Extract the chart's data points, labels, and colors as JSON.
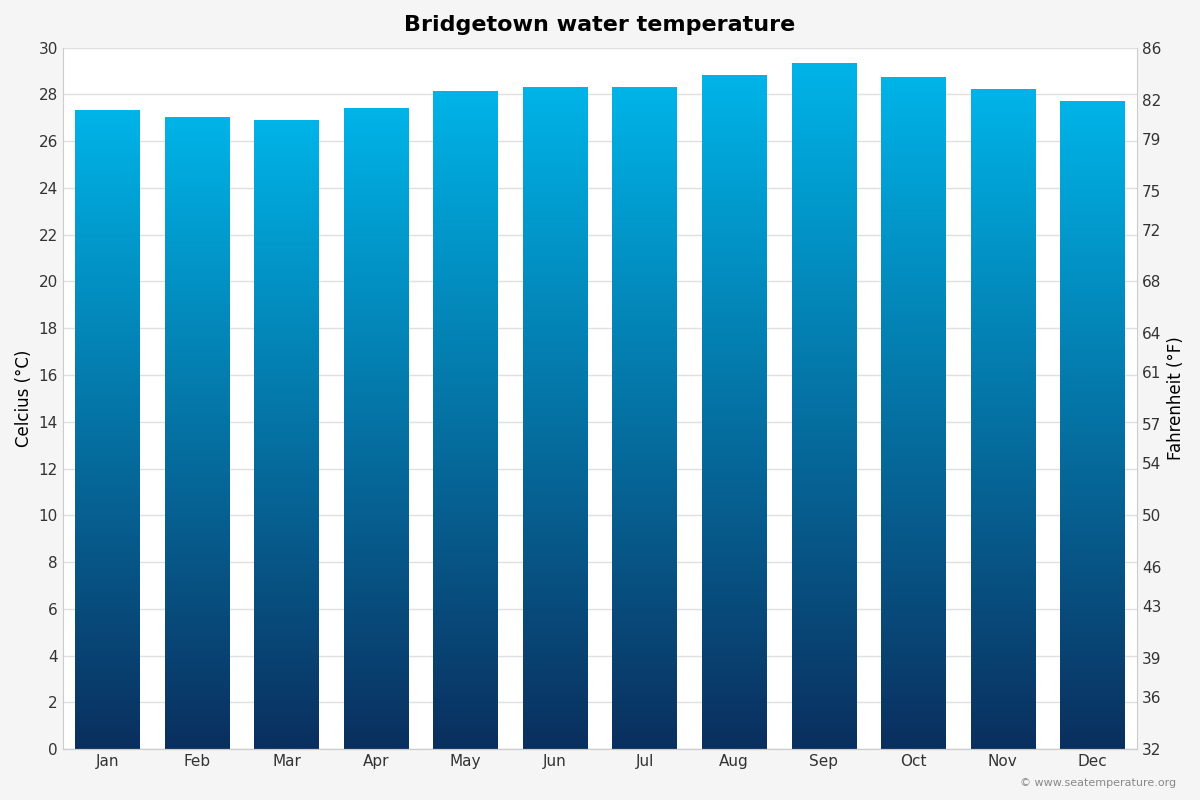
{
  "title": "Bridgetown water temperature",
  "months": [
    "Jan",
    "Feb",
    "Mar",
    "Apr",
    "May",
    "Jun",
    "Jul",
    "Aug",
    "Sep",
    "Oct",
    "Nov",
    "Dec"
  ],
  "temps_c": [
    27.3,
    27.0,
    26.9,
    27.4,
    28.1,
    28.3,
    28.3,
    28.8,
    29.3,
    28.7,
    28.2,
    27.7
  ],
  "ylabel_left": "Celcius (°C)",
  "ylabel_right": "Fahrenheit (°F)",
  "ylim_c": [
    0,
    30
  ],
  "yticks_c": [
    0,
    2,
    4,
    6,
    8,
    10,
    12,
    14,
    16,
    18,
    20,
    22,
    24,
    26,
    28,
    30
  ],
  "yticks_f": [
    32,
    36,
    39,
    43,
    46,
    50,
    54,
    57,
    61,
    64,
    68,
    72,
    75,
    79,
    82,
    86
  ],
  "color_top": "#00b4e8",
  "color_bottom": "#0a2f5e",
  "background_color": "#f5f5f5",
  "plot_bg_color": "#ffffff",
  "grid_color": "#e0e0e0",
  "copyright": "© www.seatemperature.org",
  "title_fontsize": 16,
  "axis_label_fontsize": 12,
  "tick_fontsize": 11,
  "bar_width": 0.72
}
